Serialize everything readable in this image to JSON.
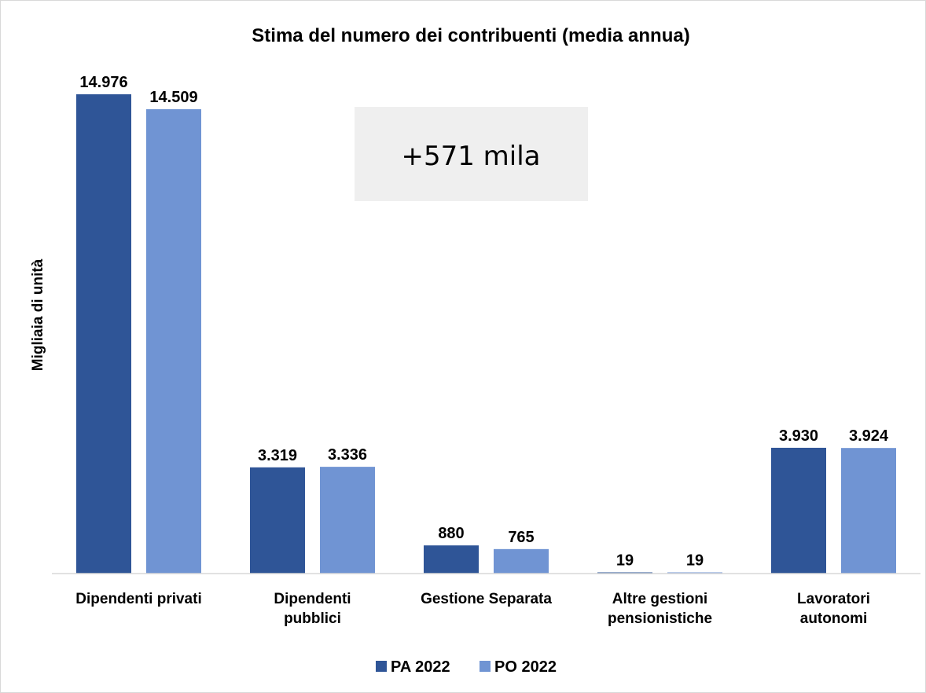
{
  "chart_data": {
    "type": "bar",
    "title": "Stima del numero dei contribuenti (media annua)",
    "xlabel": "",
    "ylabel": "Migliaia di unità",
    "categories": [
      [
        "Dipendenti privati"
      ],
      [
        "Dipendenti",
        "pubblici"
      ],
      [
        "Gestione Separata"
      ],
      [
        "Altre gestioni",
        "pensionistiche"
      ],
      [
        "Lavoratori",
        "autonomi"
      ]
    ],
    "series": [
      {
        "name": "PA 2022",
        "color": "#2f5597",
        "values": [
          14976,
          3319,
          880,
          19,
          3930
        ],
        "labels": [
          "14.976",
          "3.319",
          "880",
          "19",
          "3.930"
        ]
      },
      {
        "name": "PO 2022",
        "color": "#7094d3",
        "values": [
          14509,
          3336,
          765,
          19,
          3924
        ],
        "labels": [
          "14.509",
          "3.336",
          "765",
          "19",
          "3.924"
        ]
      }
    ],
    "ylim": [
      0,
      14976
    ],
    "grid": false,
    "legend": "bottom",
    "annotation": {
      "text": "+571 mila",
      "background": "#efefef"
    },
    "axis_color": "#d9d9d9"
  }
}
